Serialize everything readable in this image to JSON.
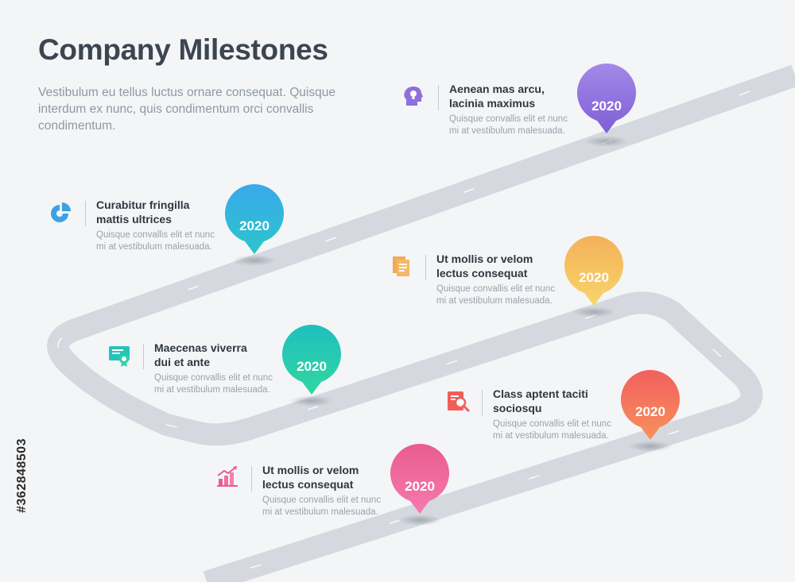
{
  "title": "Company Milestones",
  "intro": "Vestibulum eu tellus luctus ornare consequat. Quisque interdum ex nunc, quis condimentum orci convallis condimentum.",
  "milestones": [
    {
      "year": "2020",
      "heading": "Aenean mas arcu, lacinia maximus",
      "desc": "Quisque convallis elit et nunc mi at vestibulum malesuada.",
      "color_top": "#a389e8",
      "color_bottom": "#7e5fd6",
      "icon": "head-lightbulb-icon"
    },
    {
      "year": "2020",
      "heading": "Curabitur fringilla mattis ultrices",
      "desc": "Quisque convallis elit et nunc mi at vestibulum malesuada.",
      "color_top": "#3aa8ec",
      "color_bottom": "#2bc6c8",
      "icon": "pie-chart-icon"
    },
    {
      "year": "2020",
      "heading": "Ut mollis or velom lectus consequat",
      "desc": "Quisque convallis elit et nunc mi at vestibulum malesuada.",
      "color_top": "#f3b15a",
      "color_bottom": "#f8d56a",
      "icon": "documents-icon"
    },
    {
      "year": "2020",
      "heading": "Maecenas viverra dui et ante",
      "desc": "Quisque convallis elit et nunc mi at vestibulum malesuada.",
      "color_top": "#1fbfbe",
      "color_bottom": "#31d7a0",
      "icon": "certificate-icon"
    },
    {
      "year": "2020",
      "heading": "Class aptent taciti sociosqu",
      "desc": "Quisque convallis elit et nunc mi at vestibulum malesuada.",
      "color_top": "#f2605e",
      "color_bottom": "#f8915b",
      "icon": "document-search-icon"
    },
    {
      "year": "2020",
      "heading": "Ut mollis or velom lectus consequat",
      "desc": "Quisque convallis elit et nunc mi at vestibulum malesuada.",
      "color_top": "#ea5c8e",
      "color_bottom": "#f47ab0",
      "icon": "bar-chart-growth-icon"
    }
  ],
  "colors": {
    "road": "#d5d9df",
    "road_mark": "#ffffff",
    "background": "#f4f5f7"
  },
  "watermark": "#362848503"
}
